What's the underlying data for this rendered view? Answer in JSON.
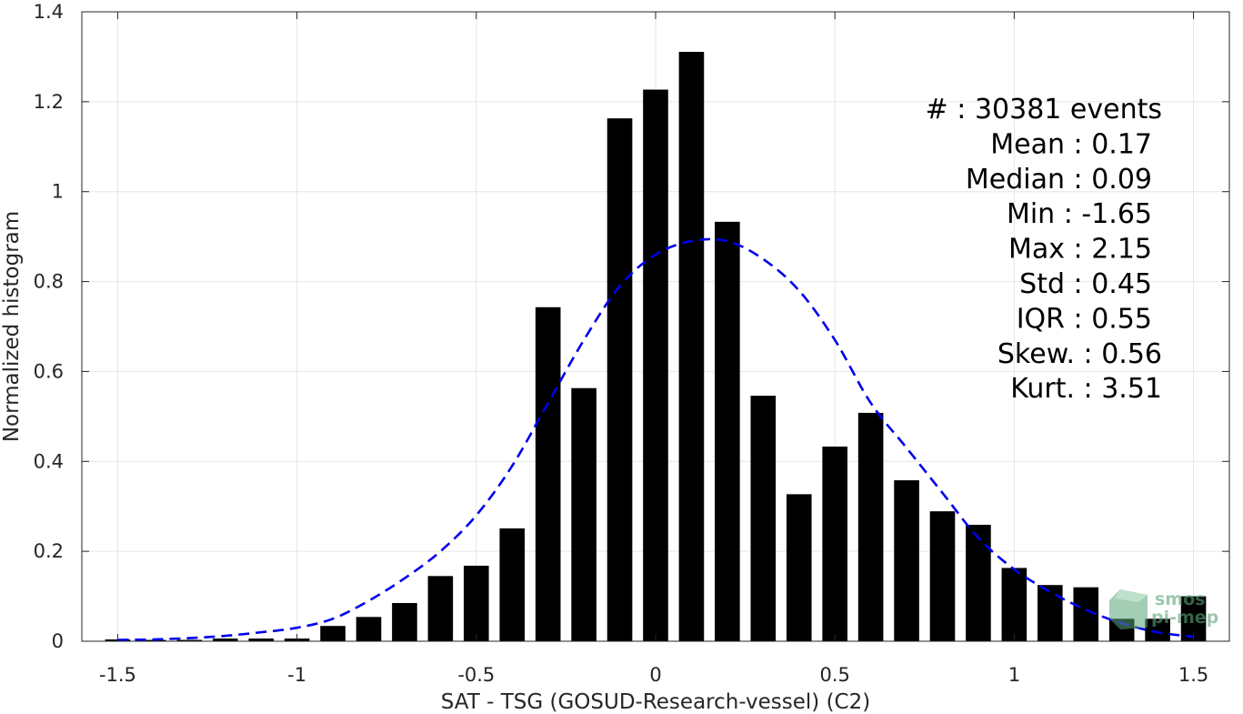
{
  "chart_data": {
    "type": "bar",
    "xlabel": "SAT - TSG (GOSUD-Research-vessel) (C2)",
    "ylabel": "Normalized histogram",
    "xlim": [
      -1.6,
      1.6
    ],
    "ylim": [
      0,
      1.4
    ],
    "xticks": [
      -1.5,
      -1,
      -0.5,
      0,
      0.5,
      1,
      1.5
    ],
    "xtick_labels": [
      "-1.5",
      "-1",
      "-0.5",
      "0",
      "0.5",
      "1",
      "1.5"
    ],
    "yticks": [
      0,
      0.2,
      0.4,
      0.6,
      0.8,
      1,
      1.2,
      1.4
    ],
    "ytick_labels": [
      "0",
      "0.2",
      "0.4",
      "0.6",
      "0.8",
      "1",
      "1.2",
      "1.4"
    ],
    "grid": true,
    "bar_color": "#000000",
    "bar_width": 0.07,
    "x": [
      -1.5,
      -1.4,
      -1.3,
      -1.2,
      -1.1,
      -1.0,
      -0.9,
      -0.8,
      -0.7,
      -0.6,
      -0.5,
      -0.4,
      -0.3,
      -0.2,
      -0.1,
      0.0,
      0.1,
      0.2,
      0.3,
      0.4,
      0.5,
      0.6,
      0.7,
      0.8,
      0.9,
      1.0,
      1.1,
      1.2,
      1.3,
      1.4,
      1.5
    ],
    "values": [
      0.004,
      0.003,
      0.003,
      0.006,
      0.006,
      0.006,
      0.034,
      0.054,
      0.085,
      0.145,
      0.168,
      0.251,
      0.743,
      0.563,
      1.163,
      1.227,
      1.311,
      0.933,
      0.546,
      0.327,
      0.433,
      0.508,
      0.358,
      0.289,
      0.259,
      0.163,
      0.125,
      0.12,
      0.05,
      0.05,
      0.1
    ],
    "fit_curve": {
      "style": "dashed",
      "color": "#0000ee",
      "x": [
        -1.5,
        -1.4,
        -1.3,
        -1.2,
        -1.1,
        -1.0,
        -0.9,
        -0.8,
        -0.7,
        -0.6,
        -0.5,
        -0.4,
        -0.3,
        -0.2,
        -0.1,
        0.0,
        0.1,
        0.2,
        0.3,
        0.4,
        0.5,
        0.6,
        0.7,
        0.8,
        0.9,
        1.0,
        1.1,
        1.2,
        1.3,
        1.4,
        1.5
      ],
      "y": [
        0.003,
        0.004,
        0.007,
        0.012,
        0.02,
        0.03,
        0.05,
        0.09,
        0.14,
        0.2,
        0.28,
        0.39,
        0.53,
        0.67,
        0.79,
        0.86,
        0.89,
        0.89,
        0.85,
        0.78,
        0.67,
        0.53,
        0.43,
        0.33,
        0.23,
        0.16,
        0.11,
        0.07,
        0.04,
        0.02,
        0.01
      ]
    },
    "stats": [
      "#  : 30381 events",
      "Mean : 0.17",
      "Median : 0.09",
      "Min : -1.65",
      "Max : 2.15",
      "Std : 0.45",
      "IQR : 0.55",
      "Skew. : 0.56",
      "Kurt. : 3.51"
    ],
    "watermark": [
      "smos",
      "pi-mep"
    ]
  }
}
